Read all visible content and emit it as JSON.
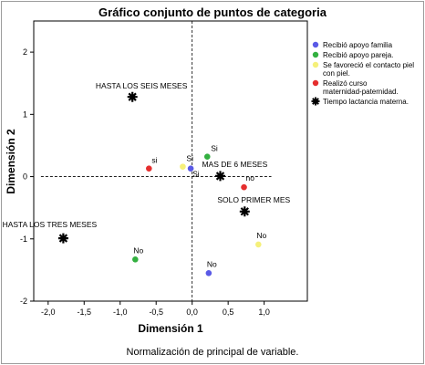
{
  "chart_data": {
    "type": "scatter",
    "title": "Gráfico conjunto de puntos de categoria",
    "xlabel": "Dimensión 1",
    "ylabel": "Dimensión 2",
    "footnote": "Normalización de principal de variable.",
    "xlim": [
      -2.2,
      1.6
    ],
    "ylim": [
      -2,
      2.5
    ],
    "xticks": [
      -2.0,
      -1.5,
      -1.0,
      -0.5,
      0.0,
      0.5,
      1.0
    ],
    "xtick_labels": [
      "-2,0",
      "-1,5",
      "-1,0",
      "-0,5",
      "0,0",
      "0,5",
      "1,0"
    ],
    "yticks": [
      -2,
      -1,
      0,
      1,
      2
    ],
    "ytick_labels": [
      "-2",
      "-1",
      "0",
      "1",
      "2"
    ],
    "grid": false,
    "legend_position": "right",
    "series": [
      {
        "name": "Recibió apoyo familia",
        "color": "#5a5ae6",
        "marker": "circle",
        "points": [
          {
            "x": -0.02,
            "y": 0.13,
            "label": "Si"
          },
          {
            "x": 0.23,
            "y": -1.55,
            "label": "No"
          }
        ]
      },
      {
        "name": "Recibió apoyo pareja.",
        "color": "#33b040",
        "marker": "circle",
        "points": [
          {
            "x": 0.21,
            "y": 0.32,
            "label": "Si"
          },
          {
            "x": -0.79,
            "y": -1.33,
            "label": "No"
          }
        ]
      },
      {
        "name": "Se favoreció el contacto piel con piel.",
        "color": "#f5f07a",
        "marker": "circle",
        "points": [
          {
            "x": -0.13,
            "y": 0.16,
            "label": "Si"
          },
          {
            "x": 0.92,
            "y": -1.09,
            "label": "No"
          }
        ]
      },
      {
        "name": "Realizó curso maternidad-paternidad.",
        "color": "#e52e2e",
        "marker": "circle",
        "points": [
          {
            "x": -0.6,
            "y": 0.13,
            "label": "si"
          },
          {
            "x": 0.72,
            "y": -0.17,
            "label": "no"
          }
        ]
      },
      {
        "name": "Tiempo lactancia materna.",
        "color": "#000000",
        "marker": "star",
        "points": [
          {
            "x": -0.83,
            "y": 1.28,
            "label": "HASTA LOS SEIS MESES"
          },
          {
            "x": 0.39,
            "y": 0.01,
            "label": "MAS DE 6 MESES"
          },
          {
            "x": 0.73,
            "y": -0.56,
            "label": "SOLO PRIMER MES"
          },
          {
            "x": -1.79,
            "y": -0.99,
            "label": "HASTA LOS TRES MESES"
          }
        ]
      }
    ]
  }
}
